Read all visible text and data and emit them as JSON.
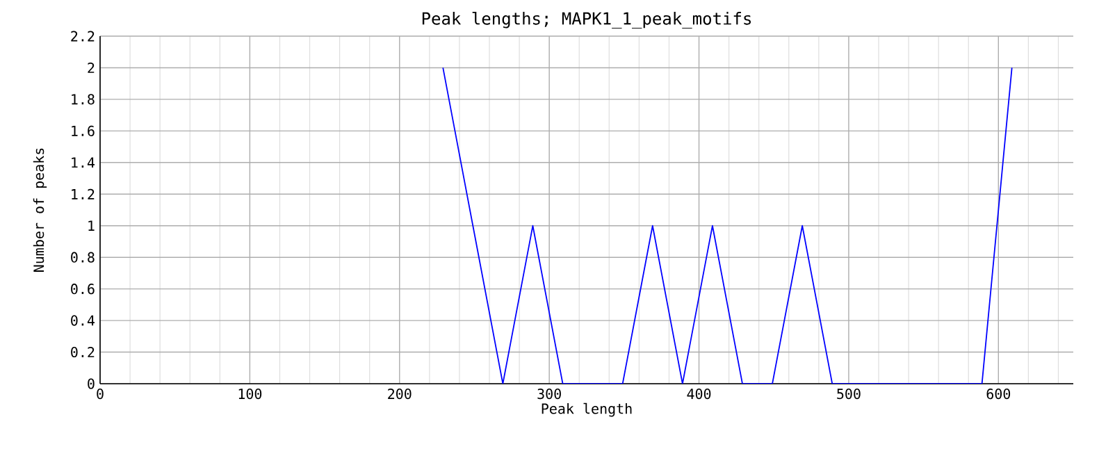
{
  "chart_data": {
    "type": "line",
    "title": "Peak lengths; MAPK1_1_peak_motifs",
    "xlabel": "Peak length",
    "ylabel": "Number of peaks",
    "x": [
      229,
      249,
      269,
      289,
      309,
      329,
      349,
      369,
      389,
      409,
      429,
      449,
      469,
      489,
      509,
      529,
      549,
      569,
      589,
      609
    ],
    "series": [
      {
        "color": "#0000ff",
        "values": [
          2,
          1,
          0,
          1,
          0,
          0,
          0,
          1,
          0,
          1,
          0,
          0,
          1,
          0,
          0,
          0,
          0,
          0,
          0,
          2
        ]
      }
    ],
    "xlim": [
      0,
      650
    ],
    "ylim": [
      0,
      2.2
    ],
    "xticks": [
      0,
      {
        "value": 20,
        "label": null
      },
      {
        "value": 40,
        "label": null
      },
      {
        "value": 60,
        "label": null
      },
      {
        "value": 80,
        "label": null
      },
      100,
      {
        "value": 120,
        "label": null
      },
      {
        "value": 140,
        "label": null
      },
      {
        "value": 160,
        "label": null
      },
      {
        "value": 180,
        "label": null
      },
      200,
      {
        "value": 220,
        "label": null
      },
      {
        "value": 240,
        "label": null
      },
      {
        "value": 260,
        "label": null
      },
      {
        "value": 280,
        "label": null
      },
      300,
      {
        "value": 320,
        "label": null
      },
      {
        "value": 340,
        "label": null
      },
      {
        "value": 360,
        "label": null
      },
      {
        "value": 380,
        "label": null
      },
      400,
      {
        "value": 420,
        "label": null
      },
      {
        "value": 440,
        "label": null
      },
      {
        "value": 460,
        "label": null
      },
      {
        "value": 480,
        "label": null
      },
      500,
      {
        "value": 520,
        "label": null
      },
      {
        "value": 540,
        "label": null
      },
      {
        "value": 560,
        "label": null
      },
      {
        "value": 580,
        "label": null
      },
      600,
      {
        "value": 620,
        "label": null
      },
      {
        "value": 640,
        "label": null
      }
    ],
    "yticks": [
      0,
      0.2,
      0.4,
      0.6,
      0.8,
      1,
      1.2,
      1.4,
      1.6,
      1.8,
      2,
      2.2
    ],
    "grid": true,
    "marker": "none",
    "line_style": "solid"
  }
}
